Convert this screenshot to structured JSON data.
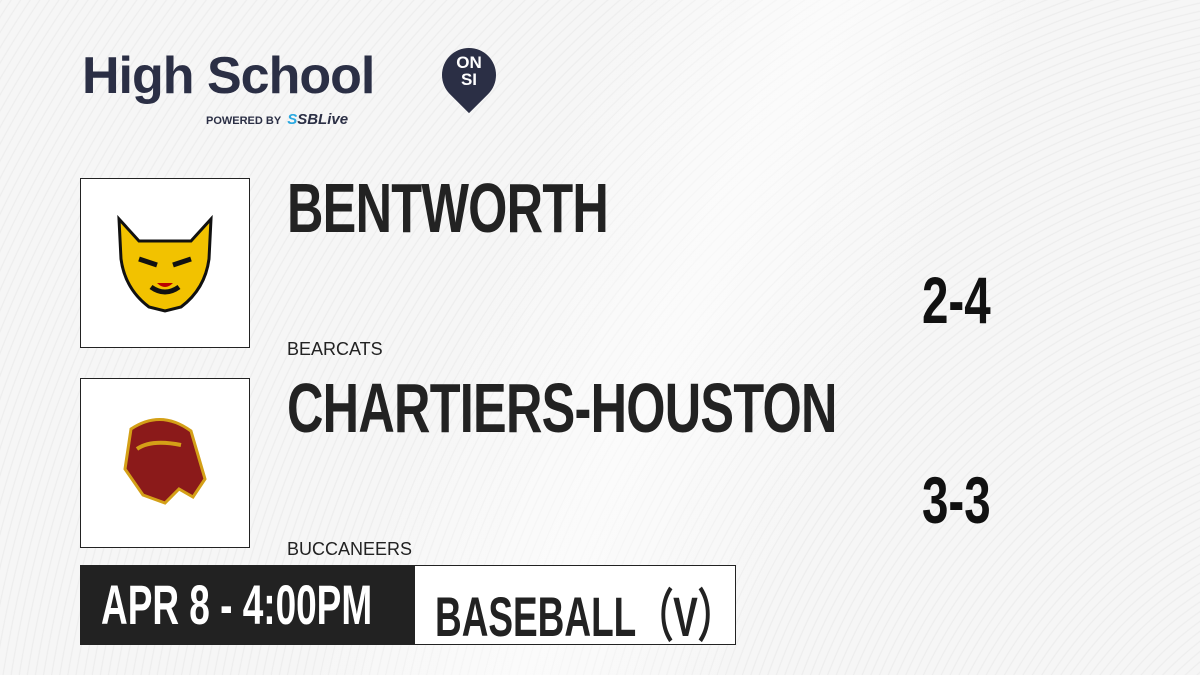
{
  "brand": {
    "title": "High School",
    "badge_top": "ON",
    "badge_bottom": "SI",
    "powered_by": "POWERED BY",
    "partner_prefix": "S",
    "partner": "SBLive"
  },
  "teams": [
    {
      "name": "BENTWORTH",
      "mascot": "BEARCATS",
      "record": "2-4",
      "logo": "bearcat-logo",
      "color": "#f2c200"
    },
    {
      "name": "CHARTIERS-HOUSTON",
      "mascot": "BUCCANEERS",
      "record": "3-3",
      "logo": "buccaneer-logo",
      "color": "#8b1a1a"
    }
  ],
  "game": {
    "datetime": "APR 8 - 4:00PM",
    "sport": "BASEBALL（V）"
  }
}
